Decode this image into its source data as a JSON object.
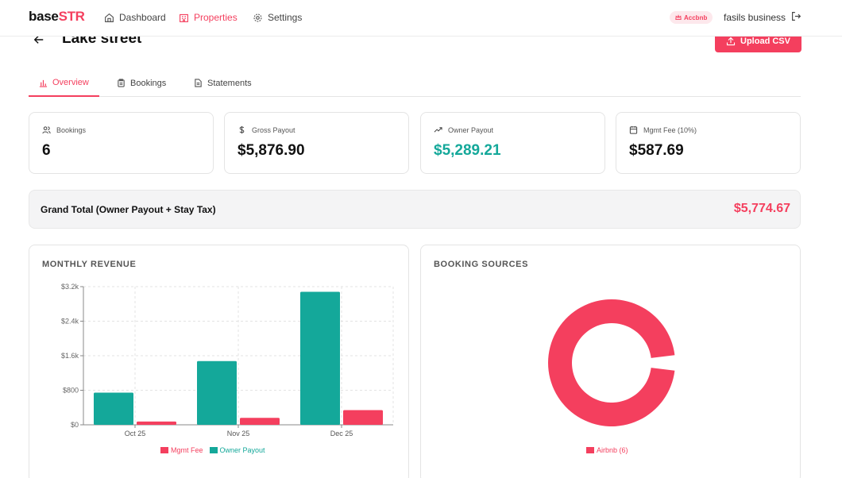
{
  "app": {
    "logo_a": "base",
    "logo_b": "STR"
  },
  "nav": [
    {
      "label": "Dashboard",
      "icon": "home-icon"
    },
    {
      "label": "Properties",
      "icon": "building-icon"
    },
    {
      "label": "Settings",
      "icon": "gear-icon"
    }
  ],
  "account": {
    "badge": "Accbnb",
    "org": "fasils business"
  },
  "page": {
    "title": "Lake street",
    "upload_label": "Upload CSV"
  },
  "tabs": [
    {
      "label": "Overview",
      "active": true
    },
    {
      "label": "Bookings",
      "active": false
    },
    {
      "label": "Statements",
      "active": false
    }
  ],
  "stats": [
    {
      "label": "Bookings",
      "value": "6",
      "icon": "users-icon"
    },
    {
      "label": "Gross Payout",
      "value": "$5,876.90",
      "icon": "dollar-icon"
    },
    {
      "label": "Owner Payout",
      "value": "$5,289.21",
      "icon": "trending-up-icon"
    },
    {
      "label": "Mgmt Fee (10%)",
      "value": "$587.69",
      "icon": "calendar-icon"
    }
  ],
  "grand_total": {
    "label": "Grand Total (Owner Payout + Stay Tax)",
    "value": "$5,774.67"
  },
  "colors": {
    "accent": "#f43f5e",
    "teal": "#14a89a"
  },
  "chart_data": [
    {
      "type": "bar",
      "title": "MONTHLY REVENUE",
      "categories": [
        "Oct 25",
        "Nov 25",
        "Dec 25"
      ],
      "series": [
        {
          "name": "Owner Payout",
          "color": "#14a89a",
          "values": [
            745,
            1475,
            3080
          ]
        },
        {
          "name": "Mgmt Fee",
          "color": "#f43f5e",
          "values": [
            75,
            160,
            340
          ]
        }
      ],
      "y_ticks": [
        "$0",
        "$800",
        "$1.6k",
        "$2.4k",
        "$3.2k"
      ],
      "ylim": [
        0,
        3200
      ],
      "grid": true,
      "legend": "bottom"
    },
    {
      "type": "pie",
      "title": "BOOKING SOURCES",
      "donut": true,
      "slices": [
        {
          "name": "Airbnb (6)",
          "value": 6,
          "color": "#f43f5e"
        }
      ],
      "legend": "bottom"
    }
  ]
}
